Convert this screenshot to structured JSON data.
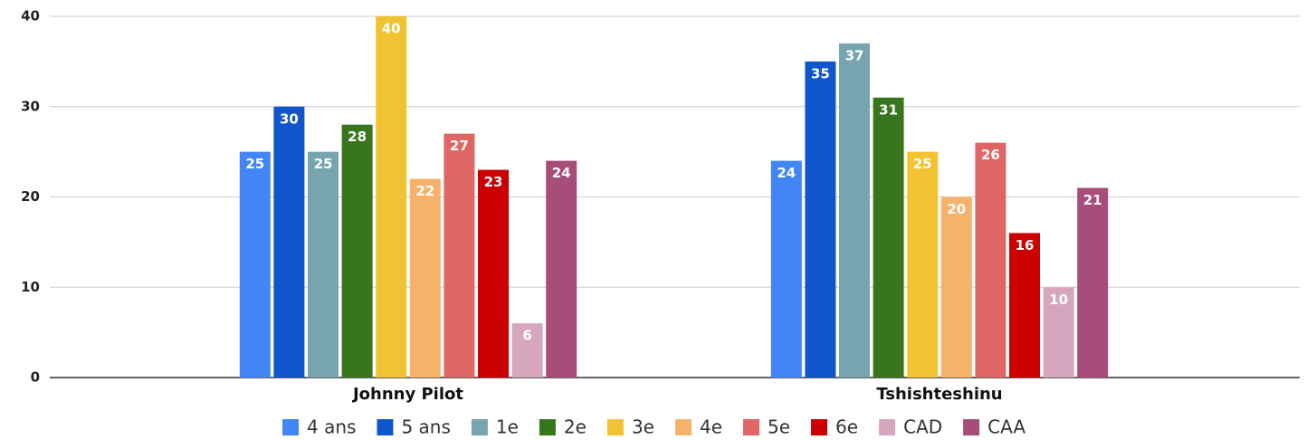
{
  "chart_data": {
    "type": "bar",
    "categories": [
      "Johnny Pilot",
      "Tshishteshinu"
    ],
    "series": [
      {
        "name": "4 ans",
        "color": "#4285f4",
        "values": [
          25,
          24
        ]
      },
      {
        "name": "5 ans",
        "color": "#1155cc",
        "values": [
          30,
          35
        ]
      },
      {
        "name": "1e",
        "color": "#76a5af",
        "values": [
          25,
          37
        ]
      },
      {
        "name": "2e",
        "color": "#38761d",
        "values": [
          28,
          31
        ]
      },
      {
        "name": "3e",
        "color": "#f1c232",
        "values": [
          40,
          25
        ]
      },
      {
        "name": "4e",
        "color": "#f6b26b",
        "values": [
          22,
          20
        ]
      },
      {
        "name": "5e",
        "color": "#e06666",
        "values": [
          27,
          26
        ]
      },
      {
        "name": "6e",
        "color": "#cc0000",
        "values": [
          23,
          16
        ]
      },
      {
        "name": "CAD",
        "color": "#d5a6bd",
        "values": [
          6,
          10
        ]
      },
      {
        "name": "CAA",
        "color": "#a64d79",
        "values": [
          24,
          21
        ]
      }
    ],
    "ylim": [
      0,
      40
    ],
    "yticks": [
      0,
      10,
      20,
      30,
      40
    ],
    "grid": true,
    "legend": "bottom"
  }
}
